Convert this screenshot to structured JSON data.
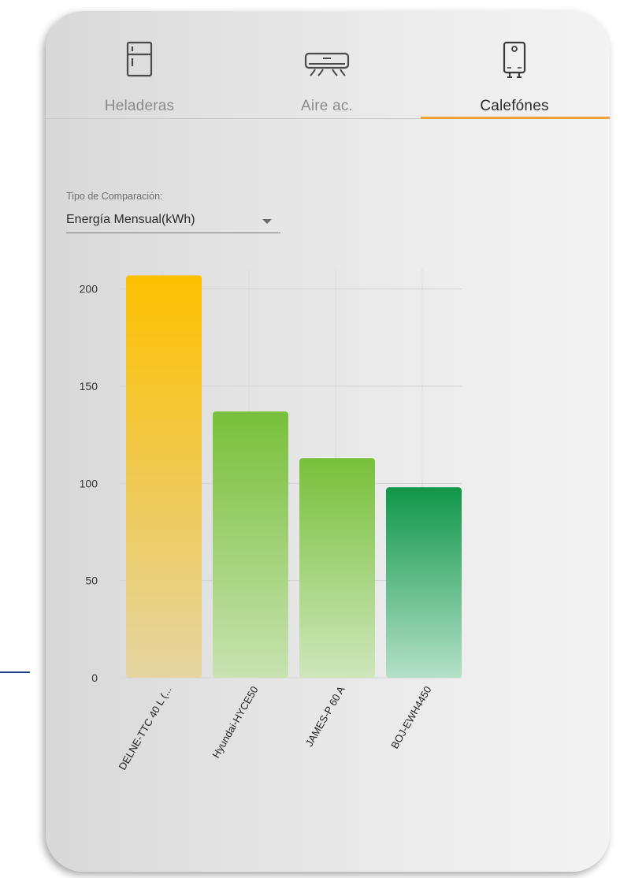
{
  "tabs": [
    {
      "label": "Heladeras",
      "icon": "refrigerator-icon",
      "active": false
    },
    {
      "label": "Aire ac.",
      "icon": "air-conditioner-icon",
      "active": false
    },
    {
      "label": "Calefónes",
      "icon": "water-heater-icon",
      "active": true
    }
  ],
  "accent_color": "#f0a23a",
  "comparison": {
    "caption": "Tipo de Comparación:",
    "value": "Energía Mensual(kWh)"
  },
  "chart_data": {
    "type": "bar",
    "categories": [
      "DELNE-TTC 40 L (...",
      "Hyundai-HYCE50",
      "JAMES-P 60 A",
      "BOJ-EWH4450"
    ],
    "values": [
      207,
      137,
      113,
      98
    ],
    "yticks": [
      0,
      50,
      100,
      150,
      200
    ],
    "ylim": [
      0,
      210
    ],
    "grid": true,
    "colors": [
      {
        "top": "#fcc000",
        "bottom": "#e4d4a2"
      },
      {
        "top": "#78c03a",
        "bottom": "#c8e2b1"
      },
      {
        "top": "#78c03a",
        "bottom": "#cfe6bd"
      },
      {
        "top": "#10964a",
        "bottom": "#b4e0c8"
      }
    ]
  }
}
